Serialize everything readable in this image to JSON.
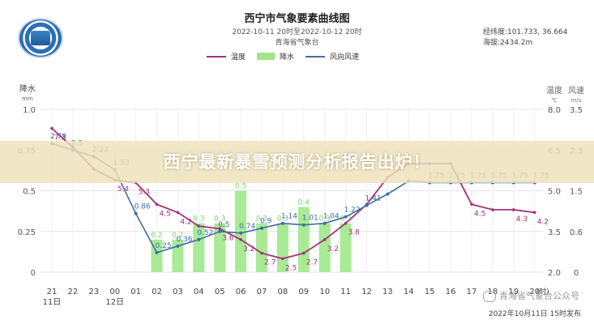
{
  "header": {
    "title": "西宁市气象要素曲线图",
    "period": "2022-10-11  20时至2022-10-12  20时",
    "issuer": "青海省气象台",
    "coords": "经纬度:101.733,  36.664",
    "altitude": "海拔:2434.2m"
  },
  "overlay": {
    "headline": "西宁最新暴雪预测分析报告出炉！",
    "watermark": "青海省气象台公众号"
  },
  "footer": {
    "publish": "2022年10月11日 15时发布"
  },
  "chart_data": {
    "type": "line",
    "x_labels": [
      "21",
      "22",
      "23",
      "00",
      "01",
      "02",
      "03",
      "04",
      "05",
      "06",
      "07",
      "08",
      "09",
      "10",
      "11",
      "12",
      "13",
      "14",
      "15",
      "16",
      "17",
      "18",
      "19",
      "20"
    ],
    "date_labels": [
      {
        "index": 0,
        "text": "11日"
      },
      {
        "index": 3,
        "text": "12日"
      }
    ],
    "x_unit": "(时)",
    "left_axis": {
      "label": "降水",
      "unit": "mm",
      "ticks": [
        "1.0",
        "0.75",
        "0.5",
        "0.25",
        "0"
      ],
      "range": [
        0,
        1.0
      ]
    },
    "right_axis_temp": {
      "label": "温度",
      "unit": "℃",
      "ticks": [
        "8.0",
        "6.5",
        "5.0",
        "3.5",
        "2.0"
      ],
      "range": [
        2.0,
        8.0
      ]
    },
    "right_axis_wind": {
      "label": "风速",
      "unit": "m/s",
      "ticks": [
        "3.5",
        "2.3",
        "1.5",
        "0.6",
        "0"
      ]
    },
    "series": [
      {
        "name": "温度",
        "color": "#a3307e",
        "axis": "temp",
        "values": [
          7.3,
          6.6,
          5.8,
          5.4,
          5.3,
          4.5,
          4.2,
          3.7,
          3.6,
          3.2,
          2.7,
          2.5,
          2.7,
          3.2,
          3.8,
          4.5,
          5.5,
          6.0,
          6.0,
          6.0,
          4.5,
          4.3,
          4.3,
          4.2
        ],
        "labels": [
          "7.3",
          "",
          "",
          "5.4",
          "5.3",
          "4.5",
          "4.2",
          "",
          "3.6",
          "3.2",
          "2.7",
          "2.5",
          "2.7",
          "3.2",
          "3.8",
          "",
          "",
          "",
          "",
          "",
          "4.5",
          "",
          "4.3",
          "4.2"
        ]
      },
      {
        "name": "降水",
        "color": "#9ee88a",
        "axis": "precip",
        "values": [
          0,
          0,
          0,
          0,
          0,
          0.2,
          0.2,
          0.3,
          0.3,
          0.5,
          0.3,
          0.3,
          0.4,
          0.3,
          0.3,
          0,
          0,
          0,
          0,
          0,
          0,
          0,
          0,
          0
        ],
        "labels": [
          "",
          "",
          "",
          "",
          "",
          "0.2",
          "0.2",
          "0.3",
          "0.3",
          "0.5",
          "0.3",
          "0.3",
          "0.4",
          "0.3",
          "0.3",
          "",
          "",
          "",
          "",
          "",
          "",
          "",
          "",
          ""
        ]
      },
      {
        "name": "风向风速",
        "color": "#3d6fa3",
        "axis": "precip",
        "values": [
          0.79,
          0.75,
          0.71,
          0.63,
          0.36,
          0.12,
          0.16,
          0.2,
          0.25,
          0.24,
          0.27,
          0.3,
          0.29,
          0.3,
          0.34,
          0.41,
          0.48,
          0.56,
          0.55,
          0.55,
          0.55,
          0.55,
          0.55,
          0.55
        ],
        "labels": [
          "2.79",
          "2.5",
          "2.22",
          "1.53",
          "0.86",
          "0.25",
          "0.36",
          "0.52",
          "0.5",
          "0.74",
          "0.9",
          "1.14",
          "1.01",
          "1.04",
          "1.22",
          "1.41",
          "",
          "",
          "1.75",
          "1.75",
          "1.75",
          "1.75",
          "1.75",
          "1.75"
        ]
      }
    ],
    "grid": true,
    "legend_position": "top-center"
  }
}
